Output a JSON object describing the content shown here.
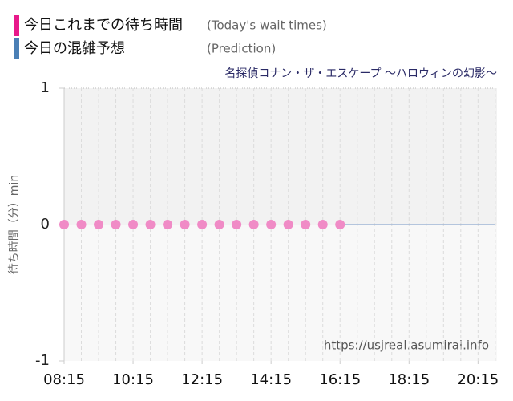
{
  "chart_data": {
    "type": "line",
    "subtitle": "名探偵コナン・ザ・エスケープ ～ハロウィンの幻影～",
    "y_label": "待ち時間（分）min",
    "source": "https://usjreal.asumirai.info",
    "xlim": [
      "08:15",
      "20:48"
    ],
    "xticks": [
      "08:15",
      "10:15",
      "12:15",
      "14:15",
      "16:15",
      "18:15",
      "20:15"
    ],
    "ylim": [
      -1,
      1
    ],
    "yticks": [
      -1,
      0,
      1
    ],
    "grid": true,
    "series": [
      {
        "name": "今日これまでの待ち時間",
        "name_en": "(Today's wait times)",
        "color": "#f08bc6",
        "legend_color": "#e8198b",
        "x": [
          "08:15",
          "08:45",
          "09:15",
          "09:45",
          "10:15",
          "10:45",
          "11:15",
          "11:45",
          "12:15",
          "12:45",
          "13:15",
          "13:45",
          "14:15",
          "14:45",
          "15:15",
          "15:45",
          "16:15"
        ],
        "values": [
          0,
          0,
          0,
          0,
          0,
          0,
          0,
          0,
          0,
          0,
          0,
          0,
          0,
          0,
          0,
          0,
          0
        ]
      },
      {
        "name": "今日の混雑予想",
        "name_en": "(Prediction)",
        "color": "#9fb6d6",
        "legend_color": "#4a7fb5",
        "x": [
          "16:15",
          "16:45",
          "17:15",
          "17:45",
          "18:15",
          "18:45",
          "19:15",
          "19:45",
          "20:15",
          "20:45"
        ],
        "values": [
          0,
          0,
          0,
          0,
          0,
          0,
          0,
          0,
          0,
          0
        ]
      }
    ]
  }
}
